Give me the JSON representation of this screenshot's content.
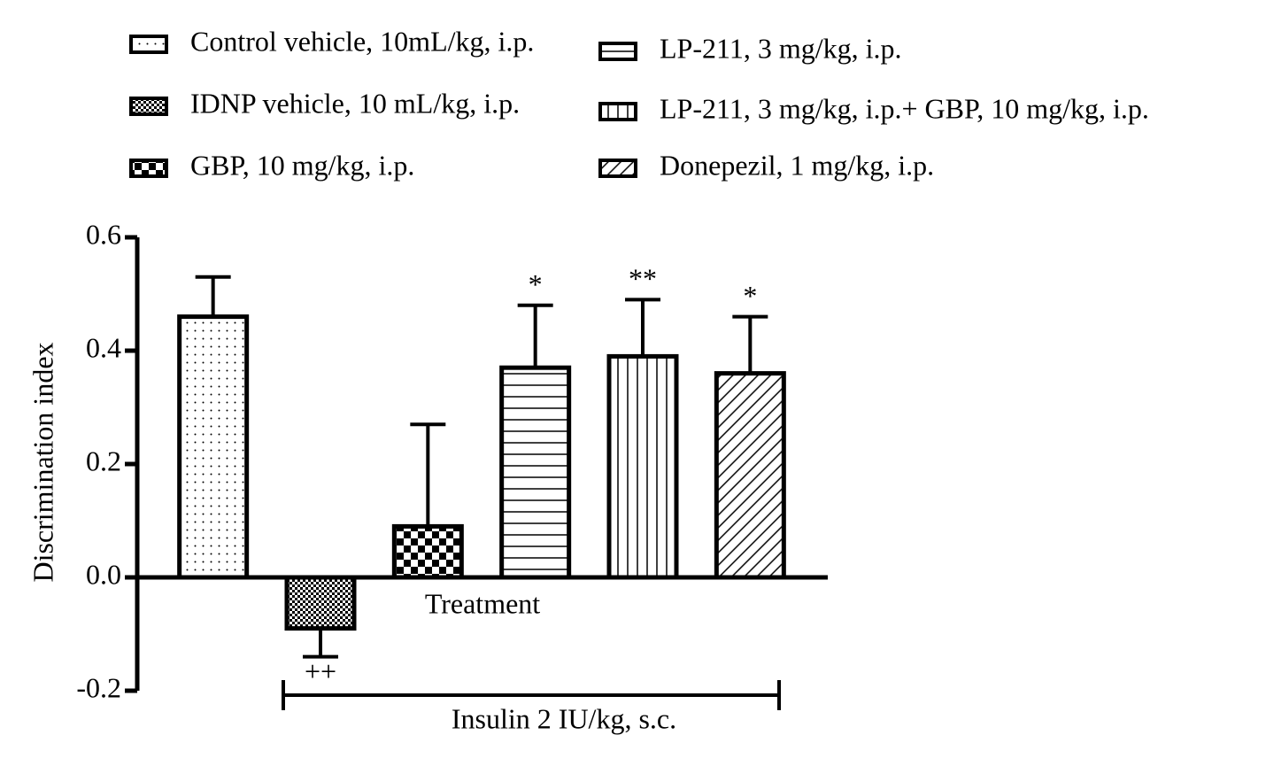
{
  "chart_data": {
    "type": "bar",
    "ylabel": "Discrimination index",
    "xlabel": "Treatment",
    "categories": [
      null
    ],
    "ylim": [
      -0.2,
      0.6
    ],
    "yticks": [
      -0.2,
      0.2,
      {
        "value": 0,
        "label": "0.0"
      },
      0.4,
      0.6
    ],
    "bracket_label": "Insulin 2 IU/kg, s.c.",
    "series": [
      {
        "name": "Control vehicle, 10mL/kg, i.p.",
        "pattern": "dots",
        "color": "#000000",
        "values": [
          0.46
        ],
        "errors": [
          0.07
        ]
      },
      {
        "name": "IDNP vehicle, 10 mL/kg, i.p.",
        "pattern": "fine-check",
        "color": "#000000",
        "values": [
          -0.09
        ],
        "errors": [
          0.05
        ],
        "annotation": "++"
      },
      {
        "name": "GBP, 10 mg/kg, i.p.",
        "pattern": "coarse-check",
        "color": "#000000",
        "values": [
          0.09
        ],
        "errors": [
          0.18
        ]
      },
      {
        "name": "LP-211, 3 mg/kg, i.p.",
        "pattern": "hlines",
        "color": "#000000",
        "values": [
          0.37
        ],
        "errors": [
          0.11
        ],
        "annotation": "*"
      },
      {
        "name": "LP-211, 3 mg/kg, i.p.+ GBP, 10 mg/kg, i.p.",
        "pattern": "vlines",
        "color": "#000000",
        "values": [
          0.39
        ],
        "errors": [
          0.1
        ],
        "annotation": "**"
      },
      {
        "name": "Donepezil, 1 mg/kg, i.p.",
        "pattern": "diag",
        "color": "#000000",
        "values": [
          0.36
        ],
        "errors": [
          0.1
        ],
        "annotation": "*"
      }
    ]
  }
}
